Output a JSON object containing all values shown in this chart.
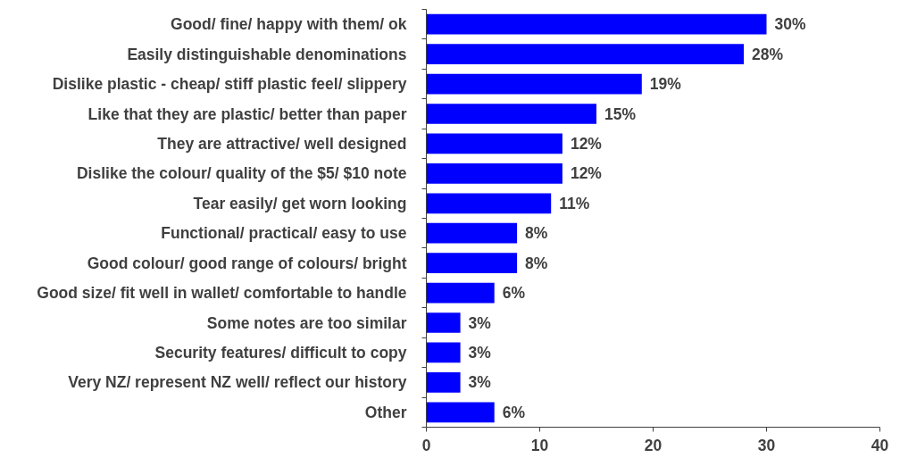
{
  "chart_data": {
    "type": "bar",
    "orientation": "horizontal",
    "categories": [
      "Good/ fine/ happy with them/ ok",
      "Easily distinguishable denominations",
      "Dislike plastic - cheap/ stiff plastic feel/ slippery",
      "Like that they are plastic/ better than paper",
      "They are attractive/ well designed",
      "Dislike the colour/ quality of the $5/ $10 note",
      "Tear easily/ get worn looking",
      "Functional/ practical/ easy to use",
      "Good colour/ good range of colours/ bright",
      "Good size/ fit well in wallet/ comfortable to handle",
      "Some notes are too similar",
      "Security features/ difficult to copy",
      "Very NZ/ represent NZ well/ reflect our history",
      "Other"
    ],
    "values": [
      30,
      28,
      19,
      15,
      12,
      12,
      11,
      8,
      8,
      6,
      3,
      3,
      3,
      6
    ],
    "value_labels": [
      "30%",
      "28%",
      "19%",
      "15%",
      "12%",
      "12%",
      "11%",
      "8%",
      "8%",
      "6%",
      "3%",
      "3%",
      "3%",
      "6%"
    ],
    "color": "#0000ff",
    "xlim": [
      0,
      40
    ],
    "xticks": [
      0,
      10,
      20,
      30,
      40
    ]
  }
}
